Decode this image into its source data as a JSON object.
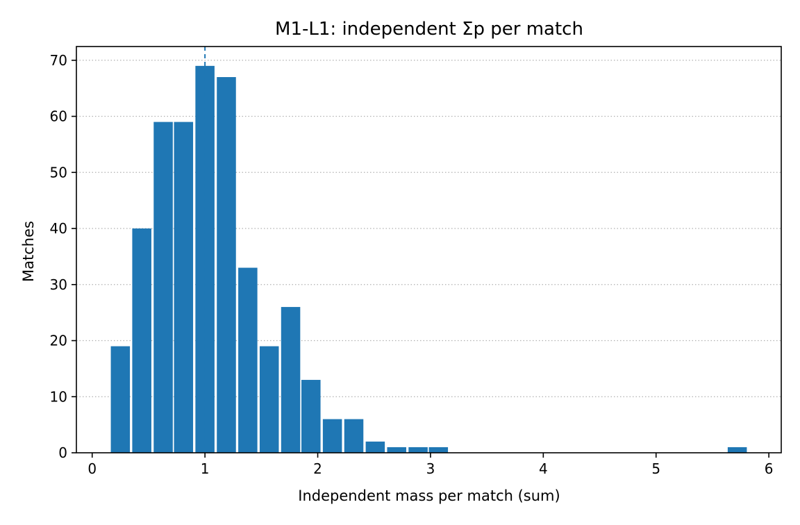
{
  "chart_data": {
    "type": "bar",
    "title": "M1-L1: independent Σp per match",
    "xlabel": "Independent mass per match (sum)",
    "ylabel": "Matches",
    "xlim": [
      -0.14,
      6.11
    ],
    "ylim": [
      0,
      72.45
    ],
    "xticks": [
      0,
      1,
      2,
      3,
      4,
      5,
      6
    ],
    "yticks": [
      0,
      10,
      20,
      30,
      40,
      50,
      60,
      70
    ],
    "grid": "y, dotted",
    "bin_width": 0.188,
    "bins": [
      {
        "x": 0.25,
        "value": 19
      },
      {
        "x": 0.44,
        "value": 40
      },
      {
        "x": 0.63,
        "value": 59
      },
      {
        "x": 0.81,
        "value": 59
      },
      {
        "x": 1.0,
        "value": 69
      },
      {
        "x": 1.19,
        "value": 67
      },
      {
        "x": 1.38,
        "value": 33
      },
      {
        "x": 1.57,
        "value": 19
      },
      {
        "x": 1.76,
        "value": 26
      },
      {
        "x": 1.94,
        "value": 13
      },
      {
        "x": 2.13,
        "value": 6
      },
      {
        "x": 2.32,
        "value": 6
      },
      {
        "x": 2.51,
        "value": 2
      },
      {
        "x": 2.7,
        "value": 1
      },
      {
        "x": 2.89,
        "value": 1
      },
      {
        "x": 3.07,
        "value": 1
      },
      {
        "x": 5.72,
        "value": 1
      }
    ],
    "reference_line": {
      "x": 1.0,
      "style": "dashed"
    },
    "bar_color": "#1f77b4",
    "grid_color": "#b0b0b0"
  }
}
